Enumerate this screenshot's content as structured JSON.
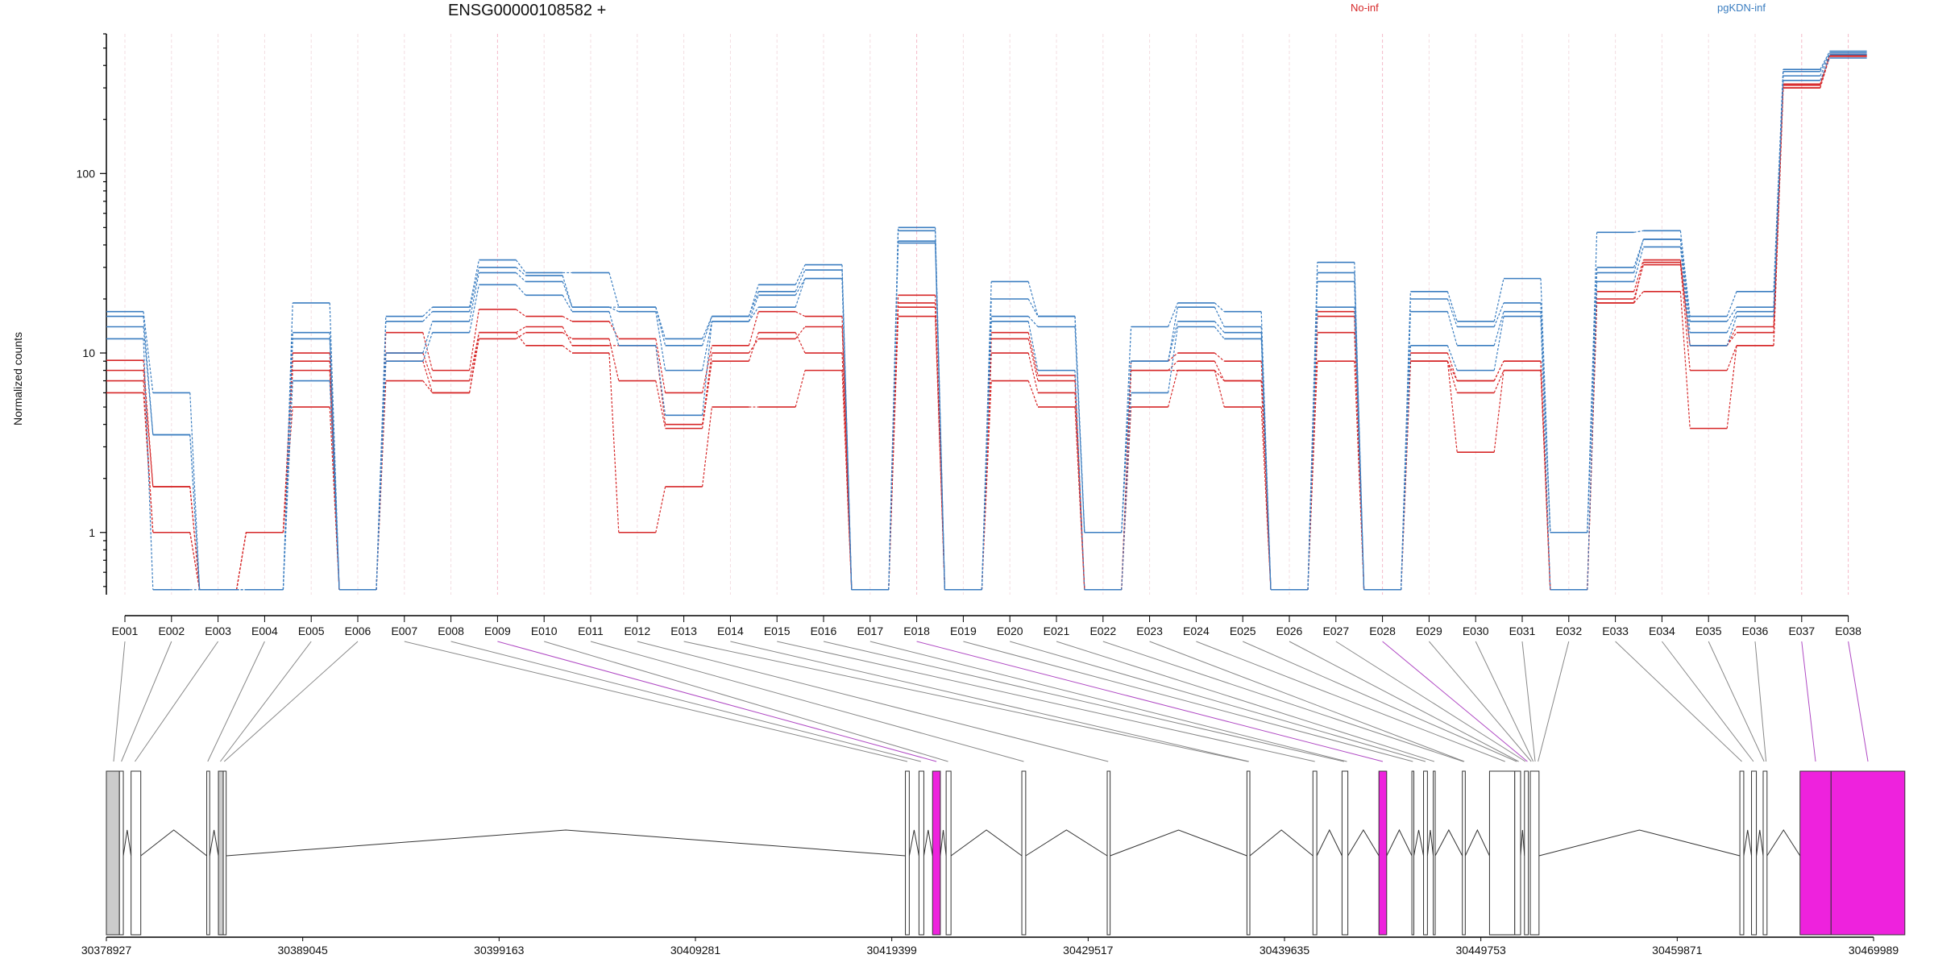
{
  "chart_data": {
    "type": "line",
    "title": "ENSG00000108582 +",
    "ylabel": "Normalized counts",
    "xlabel": "",
    "yscale": "log",
    "ylim": [
      0.45,
      600
    ],
    "yticks": [
      1,
      10,
      100
    ],
    "ytick_labels": [
      "1",
      "10",
      "100"
    ],
    "legend": [
      "No-inf",
      "pgKDN-inf"
    ],
    "legend_placement": "top",
    "grid": "vertical dashed",
    "categories": [
      "E001",
      "E002",
      "E003",
      "E004",
      "E005",
      "E006",
      "E007",
      "E008",
      "E009",
      "E010",
      "E011",
      "E012",
      "E013",
      "E014",
      "E015",
      "E016",
      "E017",
      "E018",
      "E019",
      "E020",
      "E021",
      "E022",
      "E023",
      "E024",
      "E025",
      "E026",
      "E027",
      "E028",
      "E029",
      "E030",
      "E031",
      "E032",
      "E033",
      "E034",
      "E035",
      "E036",
      "E037",
      "E038"
    ],
    "highlighted_exons": [
      "E009",
      "E018",
      "E028",
      "E037",
      "E038"
    ],
    "series": [
      {
        "group": "No-inf",
        "color": "#d62728",
        "values": [
          9.1,
          1.8,
          0.48,
          1.0,
          10.0,
          0.48,
          13.0,
          8.0,
          17.5,
          16.0,
          15.0,
          12.0,
          6.0,
          11.0,
          17.0,
          16.0,
          0.48,
          21.0,
          0.48,
          13.0,
          7.5,
          0.48,
          9.0,
          10.0,
          9.0,
          0.48,
          17.0,
          0.48,
          10.0,
          7.0,
          9.0,
          0.48,
          22.0,
          33.0,
          11.0,
          14.0,
          310,
          460
        ]
      },
      {
        "group": "No-inf",
        "color": "#d62728",
        "values": [
          8.0,
          1.8,
          0.48,
          1.0,
          9.0,
          0.48,
          10.0,
          7.0,
          13.0,
          14.0,
          11.0,
          11.0,
          4.0,
          10.0,
          12.0,
          14.0,
          0.48,
          19.0,
          0.48,
          12.0,
          7.0,
          0.48,
          8.0,
          9.0,
          7.0,
          0.48,
          16.0,
          0.48,
          9.0,
          6.0,
          8.0,
          0.48,
          20.0,
          31.0,
          8.0,
          11.0,
          300,
          450
        ]
      },
      {
        "group": "No-inf",
        "color": "#d62728",
        "values": [
          7.0,
          1.0,
          0.48,
          1.0,
          8.0,
          0.48,
          9.0,
          6.0,
          12.0,
          13.0,
          12.0,
          7.0,
          3.8,
          9.0,
          13.0,
          10.0,
          0.48,
          18.0,
          0.48,
          10.0,
          6.0,
          0.48,
          8.0,
          8.0,
          7.0,
          0.48,
          13.0,
          0.48,
          9.0,
          7.0,
          9.0,
          0.48,
          19.0,
          32.0,
          11.0,
          13.0,
          315,
          455
        ]
      },
      {
        "group": "No-inf",
        "color": "#d62728",
        "values": [
          6.0,
          1.0,
          0.48,
          1.0,
          5.0,
          0.48,
          7.0,
          6.0,
          13.0,
          11.0,
          10.0,
          1.0,
          1.8,
          5.0,
          5.0,
          8.0,
          0.48,
          16.0,
          0.48,
          7.0,
          5.0,
          0.48,
          5.0,
          8.0,
          5.0,
          0.48,
          9.0,
          0.48,
          9.0,
          2.8,
          8.0,
          0.48,
          19.0,
          22.0,
          3.8,
          11.0,
          300,
          450
        ]
      },
      {
        "group": "pgKDN-inf",
        "color": "#3a7dc0",
        "values": [
          17.0,
          6.0,
          0.48,
          0.48,
          19.0,
          0.48,
          16.0,
          18.0,
          33.0,
          28.0,
          28.0,
          18.0,
          12.0,
          16.0,
          24.0,
          31.0,
          0.48,
          50.0,
          0.48,
          25.0,
          16.0,
          1.0,
          14.0,
          19.0,
          17.0,
          0.48,
          32.0,
          0.48,
          22.0,
          15.0,
          26.0,
          1.0,
          47.0,
          48.0,
          16.0,
          22.0,
          380,
          480
        ]
      },
      {
        "group": "pgKDN-inf",
        "color": "#3a7dc0",
        "values": [
          16.0,
          3.5,
          0.48,
          0.48,
          13.0,
          0.48,
          15.0,
          17.0,
          30.0,
          27.0,
          18.0,
          18.0,
          11.0,
          16.0,
          22.0,
          29.0,
          0.48,
          48.0,
          0.48,
          20.0,
          16.0,
          1.0,
          9.0,
          18.0,
          14.0,
          0.48,
          28.0,
          0.48,
          20.0,
          14.0,
          19.0,
          1.0,
          30.0,
          43.0,
          15.0,
          18.0,
          370,
          470
        ]
      },
      {
        "group": "pgKDN-inf",
        "color": "#3a7dc0",
        "values": [
          14.0,
          3.5,
          0.48,
          0.48,
          12.0,
          0.48,
          10.0,
          15.0,
          28.0,
          25.0,
          18.0,
          17.0,
          8.0,
          15.0,
          21.0,
          26.0,
          0.48,
          42.0,
          0.48,
          16.0,
          14.0,
          1.0,
          9.0,
          15.0,
          13.0,
          0.48,
          25.0,
          0.48,
          17.0,
          11.0,
          17.0,
          1.0,
          28.0,
          43.0,
          13.0,
          17.0,
          350,
          460
        ]
      },
      {
        "group": "pgKDN-inf",
        "color": "#3a7dc0",
        "values": [
          12.0,
          0.48,
          0.48,
          0.48,
          7.0,
          0.48,
          9.0,
          13.0,
          24.0,
          21.0,
          17.0,
          11.0,
          4.5,
          15.0,
          18.0,
          26.0,
          0.48,
          41.0,
          0.48,
          15.0,
          8.0,
          0.48,
          6.0,
          14.0,
          12.0,
          0.48,
          18.0,
          0.48,
          11.0,
          8.0,
          16.0,
          0.48,
          25.0,
          39.0,
          11.0,
          16.0,
          330,
          440
        ]
      }
    ],
    "genomic_ticks": [
      "30378927",
      "30389045",
      "30399163",
      "30409281",
      "30419399",
      "30429517",
      "30439635",
      "30449753",
      "30459871",
      "30469989"
    ],
    "genomic_range": [
      30378927,
      30469989
    ],
    "exons": [
      {
        "start": 30378927,
        "end": 30379600,
        "fill": "#cccccc"
      },
      {
        "start": 30379600,
        "end": 30379800,
        "fill": "#ffffff"
      },
      {
        "start": 30380200,
        "end": 30380700,
        "fill": "#ffffff"
      },
      {
        "start": 30384100,
        "end": 30384250,
        "fill": "#ffffff"
      },
      {
        "start": 30384700,
        "end": 30384950,
        "fill": "#cccccc"
      },
      {
        "start": 30384950,
        "end": 30385100,
        "fill": "#ffffff"
      },
      {
        "start": 30420100,
        "end": 30420300,
        "fill": "#ffffff"
      },
      {
        "start": 30420800,
        "end": 30421050,
        "fill": "#ffffff"
      },
      {
        "start": 30421500,
        "end": 30421900,
        "fill": "#ee22dd"
      },
      {
        "start": 30422200,
        "end": 30422450,
        "fill": "#ffffff"
      },
      {
        "start": 30426100,
        "end": 30426300,
        "fill": "#ffffff"
      },
      {
        "start": 30430500,
        "end": 30430650,
        "fill": "#ffffff"
      },
      {
        "start": 30437700,
        "end": 30437850,
        "fill": "#ffffff"
      },
      {
        "start": 30441100,
        "end": 30441300,
        "fill": "#ffffff"
      },
      {
        "start": 30442600,
        "end": 30442900,
        "fill": "#ffffff"
      },
      {
        "start": 30444500,
        "end": 30444900,
        "fill": "#ee22dd"
      },
      {
        "start": 30446200,
        "end": 30446300,
        "fill": "#ffffff"
      },
      {
        "start": 30446800,
        "end": 30447000,
        "fill": "#ffffff"
      },
      {
        "start": 30447300,
        "end": 30447400,
        "fill": "#ffffff"
      },
      {
        "start": 30448800,
        "end": 30448950,
        "fill": "#ffffff"
      },
      {
        "start": 30450200,
        "end": 30451500,
        "fill": "#ffffff"
      },
      {
        "start": 30451500,
        "end": 30451800,
        "fill": "#ffffff"
      },
      {
        "start": 30452000,
        "end": 30452200,
        "fill": "#ffffff"
      },
      {
        "start": 30452300,
        "end": 30452750,
        "fill": "#ffffff"
      },
      {
        "start": 30463100,
        "end": 30463300,
        "fill": "#ffffff"
      },
      {
        "start": 30463700,
        "end": 30463950,
        "fill": "#ffffff"
      },
      {
        "start": 30464300,
        "end": 30464500,
        "fill": "#ffffff"
      },
      {
        "start": 30466200,
        "end": 30467800,
        "fill": "#ee22dd"
      },
      {
        "start": 30467800,
        "end": 30471600,
        "fill": "#ee22dd"
      }
    ],
    "exon_links": [
      {
        "exon": "E001",
        "pos": 30379300
      },
      {
        "exon": "E002",
        "pos": 30379700
      },
      {
        "exon": "E003",
        "pos": 30380400
      },
      {
        "exon": "E004",
        "pos": 30384150
      },
      {
        "exon": "E005",
        "pos": 30384800
      },
      {
        "exon": "E006",
        "pos": 30385000
      },
      {
        "exon": "E007",
        "pos": 30420200
      },
      {
        "exon": "E008",
        "pos": 30420900
      },
      {
        "exon": "E009",
        "pos": 30421700
      },
      {
        "exon": "E010",
        "pos": 30422300
      },
      {
        "exon": "E011",
        "pos": 30426200
      },
      {
        "exon": "E012",
        "pos": 30430550
      },
      {
        "exon": "E013",
        "pos": 30437750
      },
      {
        "exon": "E014",
        "pos": 30437800
      },
      {
        "exon": "E015",
        "pos": 30441200
      },
      {
        "exon": "E016",
        "pos": 30442700
      },
      {
        "exon": "E017",
        "pos": 30442850
      },
      {
        "exon": "E018",
        "pos": 30444700
      },
      {
        "exon": "E019",
        "pos": 30446250
      },
      {
        "exon": "E020",
        "pos": 30446900
      },
      {
        "exon": "E021",
        "pos": 30447350
      },
      {
        "exon": "E022",
        "pos": 30448850
      },
      {
        "exon": "E023",
        "pos": 30448900
      },
      {
        "exon": "E024",
        "pos": 30451000
      },
      {
        "exon": "E025",
        "pos": 30451600
      },
      {
        "exon": "E026",
        "pos": 30451700
      },
      {
        "exon": "E027",
        "pos": 30452050
      },
      {
        "exon": "E028",
        "pos": 30452150
      },
      {
        "exon": "E029",
        "pos": 30452350
      },
      {
        "exon": "E030",
        "pos": 30452450
      },
      {
        "exon": "E031",
        "pos": 30452550
      },
      {
        "exon": "E032",
        "pos": 30452700
      },
      {
        "exon": "E033",
        "pos": 30463200
      },
      {
        "exon": "E034",
        "pos": 30463800
      },
      {
        "exon": "E035",
        "pos": 30464350
      },
      {
        "exon": "E036",
        "pos": 30464450
      },
      {
        "exon": "E037",
        "pos": 30467000
      },
      {
        "exon": "E038",
        "pos": 30469700
      }
    ]
  }
}
